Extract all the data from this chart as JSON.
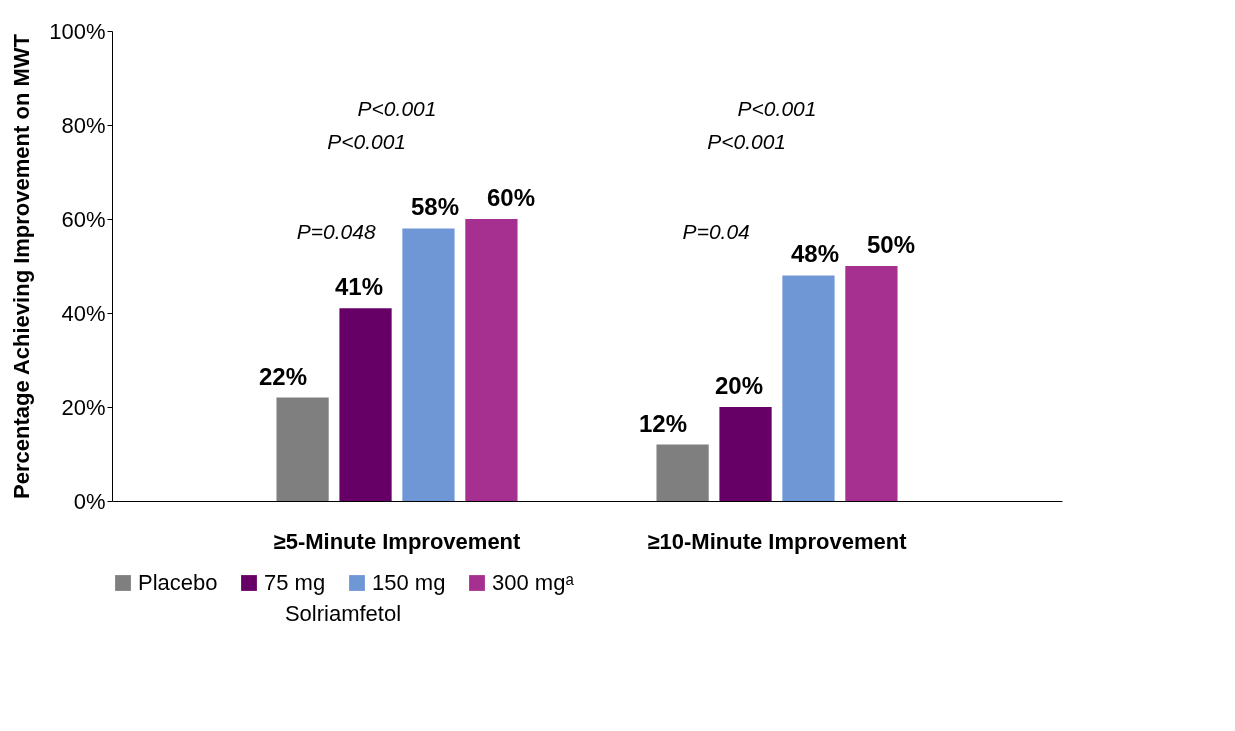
{
  "chart_data": {
    "type": "bar",
    "categories": [
      "≥5-Minute Improvement",
      "≥10-Minute Improvement"
    ],
    "series": [
      {
        "name": "Placebo",
        "color": "#7f7f7f",
        "values": [
          22,
          12
        ]
      },
      {
        "name": "75 mg",
        "color": "#660066",
        "values": [
          41,
          20
        ]
      },
      {
        "name": "150 mg",
        "color": "#6f97d6",
        "values": [
          58,
          48
        ]
      },
      {
        "name": "300 mgᵃ",
        "color": "#a5308f",
        "values": [
          60,
          50
        ]
      }
    ],
    "ylabel": "Percentage Achieving Improvement on MWT",
    "ylim": [
      0,
      100
    ],
    "yticks": [
      {
        "value": 0,
        "label": "0%"
      },
      {
        "value": 20,
        "label": "20%"
      },
      {
        "value": 40,
        "label": "40%"
      },
      {
        "value": 60,
        "label": "60%"
      },
      {
        "value": 80,
        "label": "80%"
      },
      {
        "value": 100,
        "label": "100%"
      }
    ],
    "value_labels": [
      "22%",
      "12%",
      "41%",
      "20%",
      "58%",
      "48%",
      "60%",
      "50%"
    ],
    "legend": "bottom",
    "legend_title": "Solriamfetol",
    "grid": false,
    "annotations": [
      "P=0.048",
      "P<0.001",
      "P<0.001",
      "P=0.04",
      "P<0.001",
      "P<0.001"
    ]
  }
}
